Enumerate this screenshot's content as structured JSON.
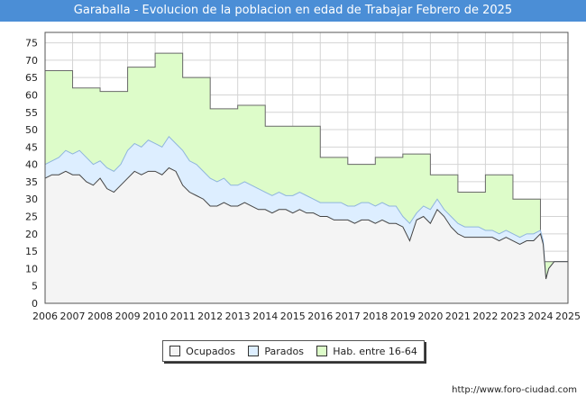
{
  "title": "Garaballa - Evolucion de la poblacion en edad de Trabajar Febrero de 2025",
  "source": "http://www.foro-ciudad.com",
  "colors": {
    "title_bg": "#4b8ed6",
    "hab_fill": "#ddfcc9",
    "hab_line": "#6a6a6a",
    "parados_fill": "#ddeeff",
    "parados_line": "#8fb5dd",
    "ocupados_fill": "#f4f4f4",
    "ocupados_line": "#444444"
  },
  "chart_data": {
    "type": "area",
    "title": "Garaballa - Evolucion de la poblacion en edad de Trabajar Febrero de 2025",
    "xlabel": "",
    "ylabel": "",
    "x_ticks": [
      "2006",
      "2007",
      "2008",
      "2009",
      "2010",
      "2011",
      "2012",
      "2013",
      "2014",
      "2015",
      "2016",
      "2017",
      "2018",
      "2019",
      "2020",
      "2021",
      "2022",
      "2023",
      "2024",
      "2025"
    ],
    "y_ticks": [
      0,
      5,
      10,
      15,
      20,
      25,
      30,
      35,
      40,
      45,
      50,
      55,
      60,
      65,
      70,
      75
    ],
    "xlim": [
      2006,
      2025
    ],
    "ylim": [
      0,
      78
    ],
    "legend": [
      "Ocupados",
      "Parados",
      "Hab. entre 16-64"
    ],
    "legend_position": "bottom-center",
    "grid": true,
    "series": [
      {
        "name": "Hab. entre 16-64",
        "shape": "step",
        "points": [
          [
            2006,
            67
          ],
          [
            2007,
            62
          ],
          [
            2008,
            61
          ],
          [
            2009,
            68
          ],
          [
            2010,
            72
          ],
          [
            2011,
            65
          ],
          [
            2012,
            56
          ],
          [
            2013,
            57
          ],
          [
            2014,
            51
          ],
          [
            2015,
            51
          ],
          [
            2016,
            42
          ],
          [
            2017,
            40
          ],
          [
            2018,
            42
          ],
          [
            2019,
            43
          ],
          [
            2020,
            37
          ],
          [
            2021,
            32
          ],
          [
            2022,
            37
          ],
          [
            2023,
            30
          ],
          [
            2024,
            12
          ],
          [
            2025,
            12
          ]
        ]
      },
      {
        "name": "Parados",
        "shape": "line",
        "points": [
          [
            2006,
            40
          ],
          [
            2006.25,
            41
          ],
          [
            2006.5,
            42
          ],
          [
            2006.75,
            44
          ],
          [
            2007,
            43
          ],
          [
            2007.25,
            44
          ],
          [
            2007.5,
            42
          ],
          [
            2007.75,
            40
          ],
          [
            2008,
            41
          ],
          [
            2008.25,
            39
          ],
          [
            2008.5,
            38
          ],
          [
            2008.75,
            40
          ],
          [
            2009,
            44
          ],
          [
            2009.25,
            46
          ],
          [
            2009.5,
            45
          ],
          [
            2009.75,
            47
          ],
          [
            2010,
            46
          ],
          [
            2010.25,
            45
          ],
          [
            2010.5,
            48
          ],
          [
            2010.75,
            46
          ],
          [
            2011,
            44
          ],
          [
            2011.25,
            41
          ],
          [
            2011.5,
            40
          ],
          [
            2011.75,
            38
          ],
          [
            2012,
            36
          ],
          [
            2012.25,
            35
          ],
          [
            2012.5,
            36
          ],
          [
            2012.75,
            34
          ],
          [
            2013,
            34
          ],
          [
            2013.25,
            35
          ],
          [
            2013.5,
            34
          ],
          [
            2013.75,
            33
          ],
          [
            2014,
            32
          ],
          [
            2014.25,
            31
          ],
          [
            2014.5,
            32
          ],
          [
            2014.75,
            31
          ],
          [
            2015,
            31
          ],
          [
            2015.25,
            32
          ],
          [
            2015.5,
            31
          ],
          [
            2015.75,
            30
          ],
          [
            2016,
            29
          ],
          [
            2016.25,
            29
          ],
          [
            2016.5,
            29
          ],
          [
            2016.75,
            29
          ],
          [
            2017,
            28
          ],
          [
            2017.25,
            28
          ],
          [
            2017.5,
            29
          ],
          [
            2017.75,
            29
          ],
          [
            2018,
            28
          ],
          [
            2018.25,
            29
          ],
          [
            2018.5,
            28
          ],
          [
            2018.75,
            28
          ],
          [
            2019,
            25
          ],
          [
            2019.25,
            23
          ],
          [
            2019.5,
            26
          ],
          [
            2019.75,
            28
          ],
          [
            2020,
            27
          ],
          [
            2020.25,
            30
          ],
          [
            2020.5,
            27
          ],
          [
            2020.75,
            25
          ],
          [
            2021,
            23
          ],
          [
            2021.25,
            22
          ],
          [
            2021.5,
            22
          ],
          [
            2021.75,
            22
          ],
          [
            2022,
            21
          ],
          [
            2022.25,
            21
          ],
          [
            2022.5,
            20
          ],
          [
            2022.75,
            21
          ],
          [
            2023,
            20
          ],
          [
            2023.25,
            19
          ],
          [
            2023.5,
            20
          ],
          [
            2023.75,
            20
          ],
          [
            2024,
            21
          ],
          [
            2024.1,
            18
          ],
          [
            2024.2,
            7
          ],
          [
            2024.3,
            10
          ],
          [
            2024.5,
            12
          ],
          [
            2025,
            12
          ]
        ]
      },
      {
        "name": "Ocupados",
        "shape": "line",
        "points": [
          [
            2006,
            36
          ],
          [
            2006.25,
            37
          ],
          [
            2006.5,
            37
          ],
          [
            2006.75,
            38
          ],
          [
            2007,
            37
          ],
          [
            2007.25,
            37
          ],
          [
            2007.5,
            35
          ],
          [
            2007.75,
            34
          ],
          [
            2008,
            36
          ],
          [
            2008.25,
            33
          ],
          [
            2008.5,
            32
          ],
          [
            2008.75,
            34
          ],
          [
            2009,
            36
          ],
          [
            2009.25,
            38
          ],
          [
            2009.5,
            37
          ],
          [
            2009.75,
            38
          ],
          [
            2010,
            38
          ],
          [
            2010.25,
            37
          ],
          [
            2010.5,
            39
          ],
          [
            2010.75,
            38
          ],
          [
            2011,
            34
          ],
          [
            2011.25,
            32
          ],
          [
            2011.5,
            31
          ],
          [
            2011.75,
            30
          ],
          [
            2012,
            28
          ],
          [
            2012.25,
            28
          ],
          [
            2012.5,
            29
          ],
          [
            2012.75,
            28
          ],
          [
            2013,
            28
          ],
          [
            2013.25,
            29
          ],
          [
            2013.5,
            28
          ],
          [
            2013.75,
            27
          ],
          [
            2014,
            27
          ],
          [
            2014.25,
            26
          ],
          [
            2014.5,
            27
          ],
          [
            2014.75,
            27
          ],
          [
            2015,
            26
          ],
          [
            2015.25,
            27
          ],
          [
            2015.5,
            26
          ],
          [
            2015.75,
            26
          ],
          [
            2016,
            25
          ],
          [
            2016.25,
            25
          ],
          [
            2016.5,
            24
          ],
          [
            2016.75,
            24
          ],
          [
            2017,
            24
          ],
          [
            2017.25,
            23
          ],
          [
            2017.5,
            24
          ],
          [
            2017.75,
            24
          ],
          [
            2018,
            23
          ],
          [
            2018.25,
            24
          ],
          [
            2018.5,
            23
          ],
          [
            2018.75,
            23
          ],
          [
            2019,
            22
          ],
          [
            2019.25,
            18
          ],
          [
            2019.5,
            24
          ],
          [
            2019.75,
            25
          ],
          [
            2020,
            23
          ],
          [
            2020.25,
            27
          ],
          [
            2020.5,
            25
          ],
          [
            2020.75,
            22
          ],
          [
            2021,
            20
          ],
          [
            2021.25,
            19
          ],
          [
            2021.5,
            19
          ],
          [
            2021.75,
            19
          ],
          [
            2022,
            19
          ],
          [
            2022.25,
            19
          ],
          [
            2022.5,
            18
          ],
          [
            2022.75,
            19
          ],
          [
            2023,
            18
          ],
          [
            2023.25,
            17
          ],
          [
            2023.5,
            18
          ],
          [
            2023.75,
            18
          ],
          [
            2024,
            20
          ],
          [
            2024.1,
            17
          ],
          [
            2024.2,
            7
          ],
          [
            2024.3,
            10
          ],
          [
            2024.5,
            12
          ],
          [
            2025,
            12
          ]
        ]
      }
    ]
  }
}
